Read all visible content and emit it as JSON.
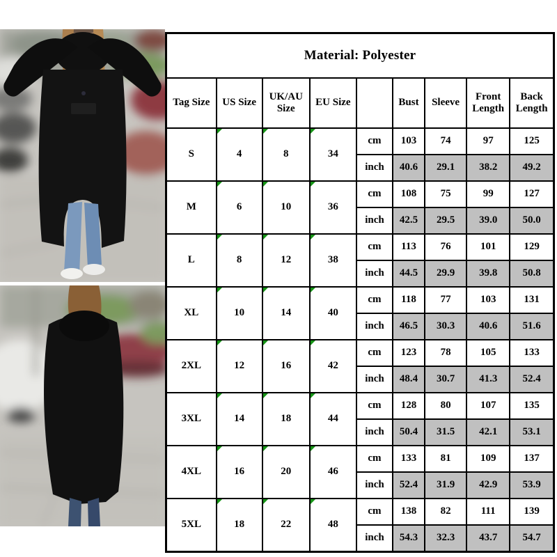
{
  "chart_data": {
    "type": "table",
    "title": "Material: Polyester",
    "columns": [
      "Tag Size",
      "US Size",
      "UK/AU Size",
      "EU Size",
      "",
      "Bust",
      "Sleeve",
      "Front Length",
      "Back Length"
    ],
    "unit_labels": {
      "cm": "cm",
      "inch": "inch"
    },
    "measure_order": [
      "Bust",
      "Sleeve",
      "Front Length",
      "Back Length"
    ],
    "rows": [
      {
        "tag": "S",
        "us": "4",
        "ukau": "8",
        "eu": "34",
        "cm": [
          "103",
          "74",
          "97",
          "125"
        ],
        "inch": [
          "40.6",
          "29.1",
          "38.2",
          "49.2"
        ]
      },
      {
        "tag": "M",
        "us": "6",
        "ukau": "10",
        "eu": "36",
        "cm": [
          "108",
          "75",
          "99",
          "127"
        ],
        "inch": [
          "42.5",
          "29.5",
          "39.0",
          "50.0"
        ]
      },
      {
        "tag": "L",
        "us": "8",
        "ukau": "12",
        "eu": "38",
        "cm": [
          "113",
          "76",
          "101",
          "129"
        ],
        "inch": [
          "44.5",
          "29.9",
          "39.8",
          "50.8"
        ]
      },
      {
        "tag": "XL",
        "us": "10",
        "ukau": "14",
        "eu": "40",
        "cm": [
          "118",
          "77",
          "103",
          "131"
        ],
        "inch": [
          "46.5",
          "30.3",
          "40.6",
          "51.6"
        ]
      },
      {
        "tag": "2XL",
        "us": "12",
        "ukau": "16",
        "eu": "42",
        "cm": [
          "123",
          "78",
          "105",
          "133"
        ],
        "inch": [
          "48.4",
          "30.7",
          "41.3",
          "52.4"
        ]
      },
      {
        "tag": "3XL",
        "us": "14",
        "ukau": "18",
        "eu": "44",
        "cm": [
          "128",
          "80",
          "107",
          "135"
        ],
        "inch": [
          "50.4",
          "31.5",
          "42.1",
          "53.1"
        ]
      },
      {
        "tag": "4XL",
        "us": "16",
        "ukau": "20",
        "eu": "46",
        "cm": [
          "133",
          "81",
          "109",
          "137"
        ],
        "inch": [
          "52.4",
          "31.9",
          "42.9",
          "53.9"
        ]
      },
      {
        "tag": "5XL",
        "us": "18",
        "ukau": "22",
        "eu": "48",
        "cm": [
          "138",
          "82",
          "111",
          "139"
        ],
        "inch": [
          "54.3",
          "32.3",
          "43.7",
          "54.7"
        ]
      }
    ]
  },
  "photos": {
    "front": {
      "alt": "Front view: model in long black hooded zip-up coat with high-low hem, hands on hood"
    },
    "back": {
      "alt": "Back view: model walking away in long black hooded coat on street"
    }
  },
  "colors": {
    "table_border": "#000000",
    "inch_cell_bg": "#c0c0c0",
    "corner_marker_green": "#169416"
  }
}
